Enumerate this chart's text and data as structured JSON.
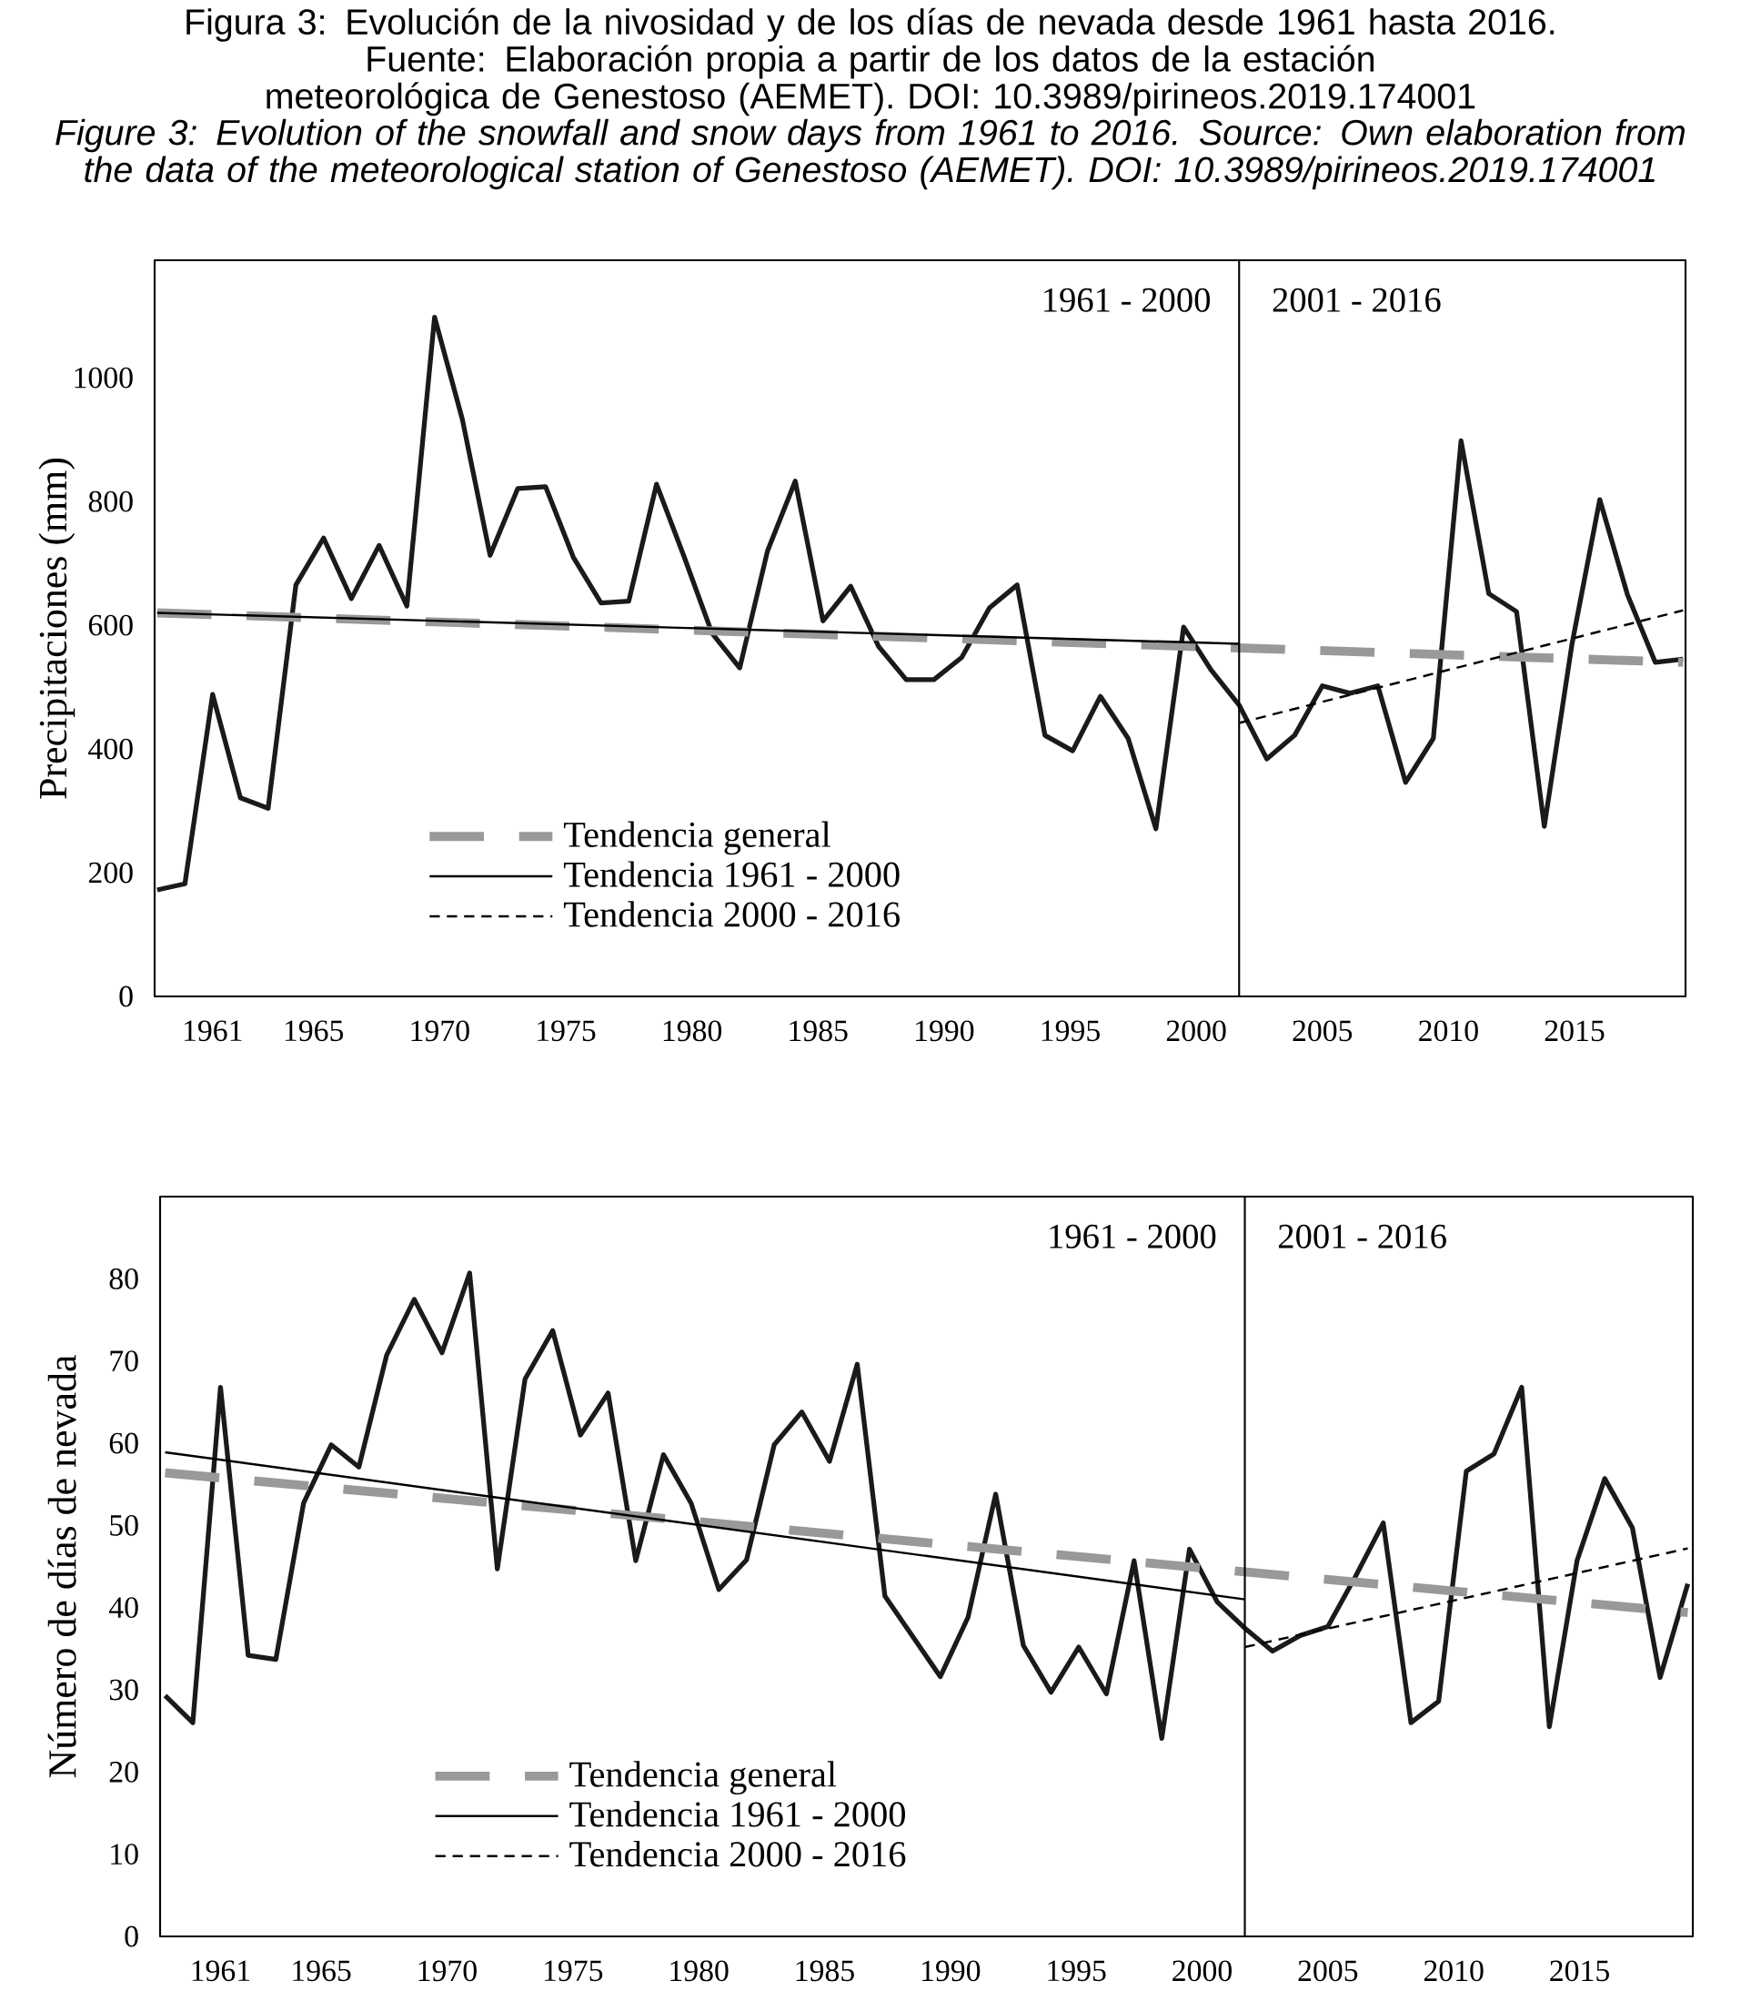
{
  "chart_data": [
    {
      "type": "line",
      "title": "Figura 3: Evolución de la nivosidad y de los días de nevada desde 1961 hasta 2016.",
      "subtitle": "Fuente: Elaboración propia a partir de los datos de la estación meteorológica de Genestoso (AEMET). DOI: 10.3989/pirineos.2019.174001",
      "annotations": [
        "1961 - 2000",
        "2001 - 2016",
        "Figure 3: Evolution of the snowfall and snow days from 1961 to 2016. Source: Own elaboration from the data of the meteorological station of Genestoso (AEMET). DOI: 10.3989/pirineos.2019.174001"
      ],
      "ylabel": "Precipitaciones (mm)",
      "x": [
        1958.8,
        1959.9,
        1961.0,
        1962.1,
        1963.2,
        1964.3,
        1965.4,
        1966.5,
        1967.6,
        1968.7,
        1969.8,
        1970.9,
        1972.0,
        1973.1,
        1974.2,
        1975.3,
        1976.4,
        1977.5,
        1978.6,
        1979.7,
        1980.8,
        1981.9,
        1983.0,
        1984.1,
        1985.2,
        1986.3,
        1987.4,
        1988.5,
        1989.6,
        1990.7,
        1991.8,
        1992.9,
        1994.0,
        1995.1,
        1996.2,
        1997.3,
        1998.4,
        1999.5,
        2000.6,
        2001.7,
        2002.8,
        2003.9,
        2005.0,
        2006.1,
        2007.2,
        2008.3,
        2009.4,
        2010.5,
        2011.6,
        2012.7,
        2013.8,
        2014.9,
        2016.0,
        2017.1,
        2018.2,
        2019.3
      ],
      "series": [
        {
          "color": "#1a1a1a",
          "values": [
            172,
            182,
            488,
            321,
            304,
            665,
            741,
            643,
            729,
            631,
            1098,
            933,
            713,
            821,
            824,
            710,
            636,
            639,
            828,
            710,
            587,
            531,
            720,
            833,
            607,
            663,
            566,
            512,
            512,
            548,
            628,
            665,
            422,
            397,
            485,
            417,
            271,
            597,
            527,
            471,
            384,
            422,
            502,
            490,
            502,
            346,
            417,
            898,
            651,
            622,
            275,
            570,
            803,
            649,
            540,
            545
          ]
        },
        {
          "name": "Tendencia general",
          "color": "#999999",
          "line_style": "dashed",
          "x": [
            1958.8,
            2019.3
          ],
          "values": [
            620,
            540
          ]
        },
        {
          "name": "Tendencia 1961 - 2000",
          "color": "#000000",
          "line_style": "solid",
          "x": [
            1958.8,
            2001.7
          ],
          "values": [
            620,
            570
          ]
        },
        {
          "name": "Tendencia 2000 - 2016",
          "color": "#000000",
          "line_style": "dashed",
          "x": [
            2001.7,
            2019.3
          ],
          "values": [
            442,
            624
          ]
        }
      ],
      "xlim": [
        1958.7,
        2019.4
      ],
      "ylim": [
        0,
        1190
      ],
      "xticks": [
        1961,
        1965,
        1970,
        1975,
        1980,
        1985,
        1990,
        1995,
        2000,
        2005,
        2010,
        2015
      ],
      "yticks": [
        0,
        200,
        400,
        600,
        800,
        1000
      ],
      "ref_lines": [
        {
          "axis": "x",
          "value": 2001.7,
          "color": "#000000"
        }
      ],
      "legend": "bottom left"
    },
    {
      "type": "line",
      "annotations": [
        "1961 - 2000",
        "2001 - 2016"
      ],
      "ylabel": "Número de días de nevada",
      "x": [
        1958.8,
        1959.9,
        1961.0,
        1962.1,
        1963.2,
        1964.3,
        1965.4,
        1966.5,
        1967.6,
        1968.7,
        1969.8,
        1970.9,
        1972.0,
        1973.1,
        1974.2,
        1975.3,
        1976.4,
        1977.5,
        1978.6,
        1979.7,
        1980.8,
        1981.9,
        1983.0,
        1984.1,
        1985.2,
        1986.3,
        1987.4,
        1988.5,
        1989.6,
        1990.7,
        1991.8,
        1992.9,
        1994.0,
        1995.1,
        1996.2,
        1997.3,
        1998.4,
        1999.5,
        2000.6,
        2001.7,
        2002.8,
        2003.9,
        2005.0,
        2006.1,
        2007.2,
        2008.3,
        2009.4,
        2010.5,
        2011.6,
        2012.7,
        2013.8,
        2014.9,
        2016.0,
        2017.1,
        2018.2,
        2019.3
      ],
      "series": [
        {
          "color": "#1a1a1a",
          "values": [
            29.3,
            26.0,
            66.8,
            34.2,
            33.7,
            52.7,
            59.8,
            57.1,
            70.7,
            77.5,
            71.0,
            80.7,
            44.7,
            67.8,
            73.7,
            61.0,
            66.1,
            45.7,
            58.6,
            52.7,
            42.2,
            45.8,
            59.8,
            63.8,
            57.8,
            69.6,
            41.4,
            36.5,
            31.6,
            38.8,
            53.8,
            35.4,
            29.7,
            35.2,
            29.5,
            45.7,
            24.1,
            47.1,
            40.7,
            37.5,
            34.7,
            36.6,
            37.7,
            43.8,
            50.3,
            26.0,
            28.6,
            56.6,
            58.7,
            66.8,
            25.5,
            45.7,
            55.7,
            49.7,
            31.5,
            42.9
          ]
        },
        {
          "name": "Tendencia general",
          "color": "#999999",
          "line_style": "dashed",
          "x": [
            1958.8,
            2019.3
          ],
          "values": [
            56.4,
            39.4
          ]
        },
        {
          "name": "Tendencia 1961 - 2000",
          "color": "#000000",
          "line_style": "solid",
          "x": [
            1958.8,
            2001.7
          ],
          "values": [
            58.9,
            41.0
          ]
        },
        {
          "name": "Tendencia 2000 - 2016",
          "color": "#000000",
          "line_style": "dashed",
          "x": [
            2001.7,
            2019.3
          ],
          "values": [
            35.2,
            47.2
          ]
        }
      ],
      "xlim": [
        1958.6,
        2019.5
      ],
      "ylim": [
        0,
        90
      ],
      "xticks": [
        1961,
        1965,
        1970,
        1975,
        1980,
        1985,
        1990,
        1995,
        2000,
        2005,
        2010,
        2015
      ],
      "yticks": [
        0,
        10,
        20,
        30,
        40,
        50,
        60,
        70,
        80
      ],
      "ref_lines": [
        {
          "axis": "x",
          "value": 2001.7,
          "color": "#000000"
        }
      ],
      "legend": "bottom left"
    }
  ]
}
